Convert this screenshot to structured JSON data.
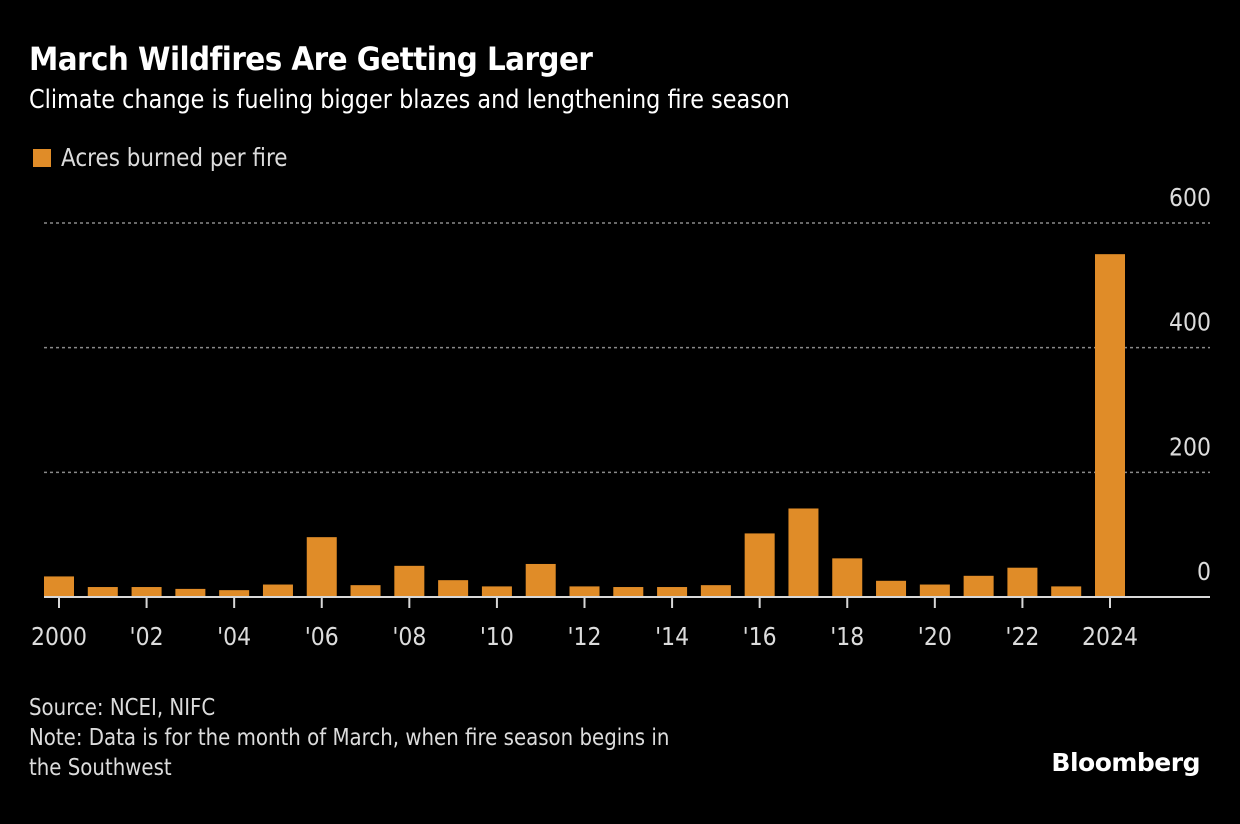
{
  "header": {
    "title": "March Wildfires Are Getting Larger",
    "subtitle": "Climate change is fueling bigger blazes and lengthening fire season"
  },
  "footer": {
    "source": "Source: NCEI, NIFC",
    "note_line1": "Note: Data is for the month of March, when fire season begins in",
    "note_line2": "the Southwest",
    "brand": "Bloomberg"
  },
  "colors": {
    "bar": "#e08c28",
    "background": "#000000",
    "grid": "#8a8a8a",
    "axis": "#d8d8d8",
    "text": "#dcdcdc"
  },
  "chart_data": {
    "type": "bar",
    "title": "March Wildfires Are Getting Larger",
    "subtitle": "Climate change is fueling bigger blazes and lengthening fire season",
    "legend": {
      "entries": [
        "Acres burned per fire"
      ],
      "placement": "top-left"
    },
    "xlabel": "",
    "ylabel": "",
    "categories": [
      2000,
      2001,
      2002,
      2003,
      2004,
      2005,
      2006,
      2007,
      2008,
      2009,
      2010,
      2011,
      2012,
      2013,
      2014,
      2015,
      2016,
      2017,
      2018,
      2019,
      2020,
      2021,
      2022,
      2023,
      2024
    ],
    "series": [
      {
        "name": "Acres burned per fire",
        "values": [
          33,
          16,
          16,
          13,
          11,
          20,
          96,
          19,
          50,
          27,
          17,
          53,
          17,
          16,
          16,
          19,
          102,
          142,
          62,
          26,
          20,
          34,
          47,
          17,
          550
        ]
      }
    ],
    "ylim": [
      0,
      600
    ],
    "y_ticks": [
      0,
      200,
      400,
      600
    ],
    "y_tick_labels": [
      "0",
      "200",
      "400",
      "600"
    ],
    "y_axis_side": "right",
    "x_ticks": [
      2000,
      2002,
      2004,
      2006,
      2008,
      2010,
      2012,
      2014,
      2016,
      2018,
      2020,
      2022,
      2024
    ],
    "x_tick_labels": [
      "2000",
      "'02",
      "'04",
      "'06",
      "'08",
      "'10",
      "'12",
      "'14",
      "'16",
      "'18",
      "'20",
      "'22",
      "2024"
    ],
    "grid": true,
    "grid_style": "dotted horizontal"
  }
}
